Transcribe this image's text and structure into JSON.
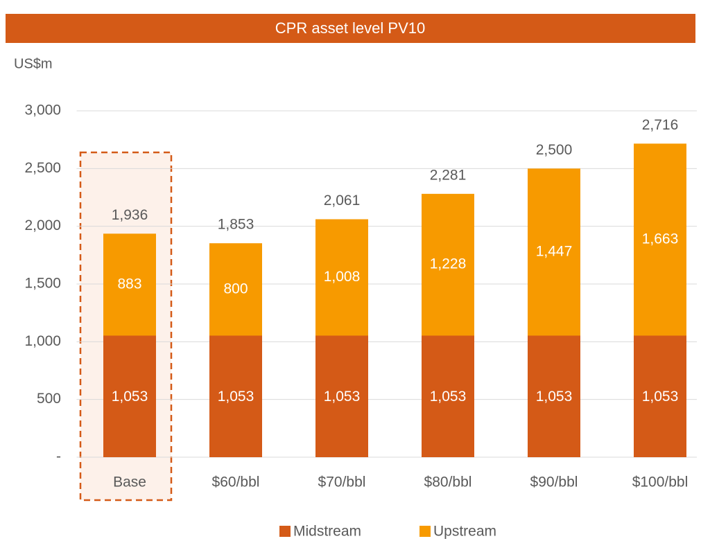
{
  "chart_data": {
    "type": "stacked_bar",
    "title": "CPR asset level PV10",
    "y_label": "US$m",
    "categories": [
      "Base",
      "$60/bbl",
      "$70/bbl",
      "$80/bbl",
      "$90/bbl",
      "$100/bbl"
    ],
    "series": [
      {
        "name": "Midstream",
        "color": "#d45a17",
        "values": [
          1053,
          1053,
          1053,
          1053,
          1053,
          1053
        ],
        "value_labels": [
          "1,053",
          "1,053",
          "1,053",
          "1,053",
          "1,053",
          "1,053"
        ]
      },
      {
        "name": "Upstream",
        "color": "#f79a00",
        "values": [
          883,
          800,
          1008,
          1228,
          1447,
          1663
        ],
        "value_labels": [
          "883",
          "800",
          "1,008",
          "1,228",
          "1,447",
          "1,663"
        ]
      }
    ],
    "total_labels": [
      "1,936",
      "1,853",
      "2,061",
      "2,281",
      "2,500",
      "2,716"
    ],
    "ylim": [
      0,
      3000
    ],
    "yticks": [
      {
        "value": 0,
        "label": "-"
      },
      500,
      {
        "value": 1000,
        "label": "1,000"
      },
      {
        "value": 1500,
        "label": "1,500"
      },
      {
        "value": 2000,
        "label": "2,000"
      },
      {
        "value": 2500,
        "label": "2,500"
      },
      {
        "value": 3000,
        "label": "3,000"
      }
    ],
    "grid": true
  }
}
